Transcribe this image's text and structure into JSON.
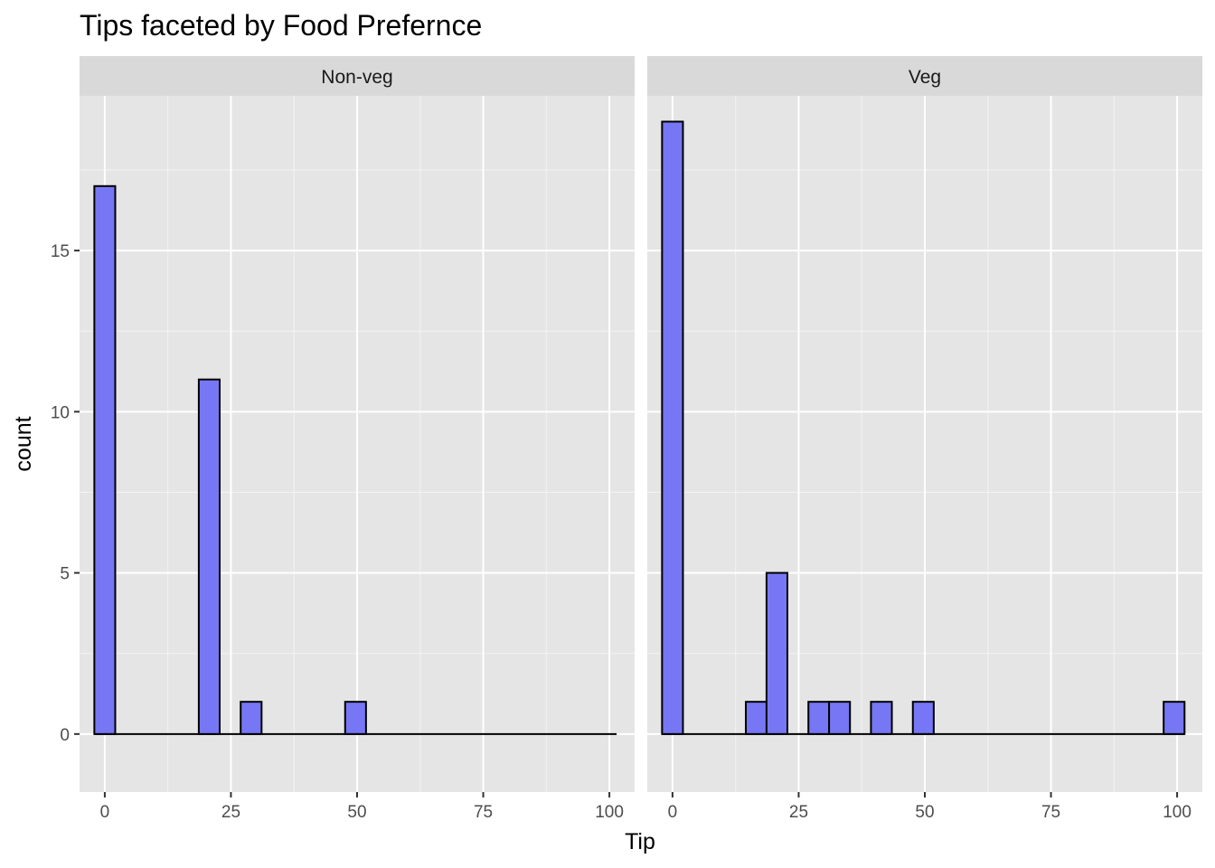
{
  "chart_data": {
    "type": "bar",
    "title": "Tips faceted by Food Prefernce",
    "xlabel": "Tip",
    "ylabel": "count",
    "xlim": [
      -5,
      105
    ],
    "ylim": [
      -1.8,
      19.8
    ],
    "x_ticks": [
      0,
      25,
      50,
      75,
      100
    ],
    "y_ticks": [
      0,
      5,
      10,
      15
    ],
    "x_tick_labels": [
      "0",
      "25",
      "50",
      "75",
      "100"
    ],
    "y_tick_labels": [
      "0",
      "5",
      "10",
      "15"
    ],
    "grid": true,
    "colors": {
      "bar_fill": "#7777f5",
      "bar_outline": "#000000",
      "panel_bg": "#e5e5e5",
      "strip_bg": "#d9d9d9",
      "grid": "#ffffff"
    },
    "bin_width": 4.14,
    "bin_start": -2.07,
    "panels": [
      {
        "label": "Non-veg",
        "bins": [
          {
            "x": 0,
            "count": 17
          },
          {
            "x": 20.7,
            "count": 11
          },
          {
            "x": 29.0,
            "count": 1
          },
          {
            "x": 49.7,
            "count": 1
          }
        ]
      },
      {
        "label": "Veg",
        "bins": [
          {
            "x": 0,
            "count": 19
          },
          {
            "x": 16.6,
            "count": 1
          },
          {
            "x": 20.7,
            "count": 5
          },
          {
            "x": 29.0,
            "count": 1
          },
          {
            "x": 33.1,
            "count": 1
          },
          {
            "x": 41.4,
            "count": 1
          },
          {
            "x": 49.7,
            "count": 1
          },
          {
            "x": 99.4,
            "count": 1
          }
        ]
      }
    ]
  }
}
